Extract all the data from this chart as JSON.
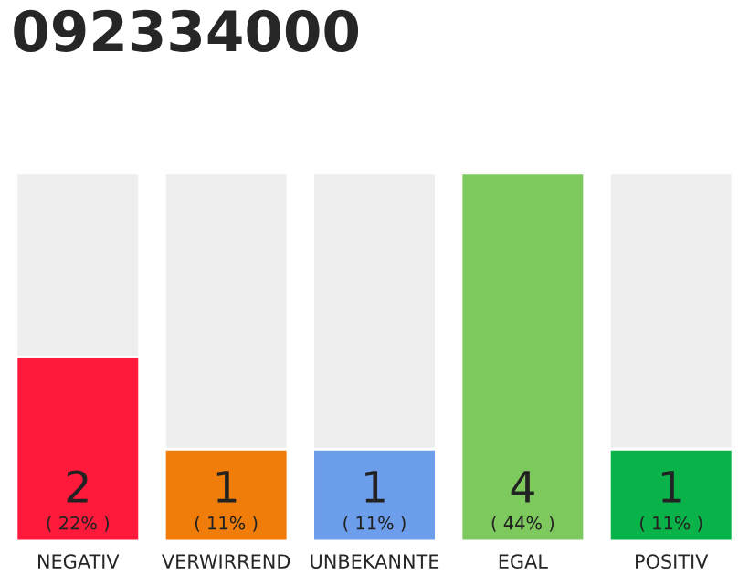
{
  "chart_data": {
    "type": "bar",
    "title": "092334000",
    "stacked": true,
    "categories": [
      "NEGATIV",
      "VERWIRREND",
      "UNBEKANNTE",
      "EGAL",
      "POSITIV"
    ],
    "series": [
      {
        "colors": [
          "#ff1a3c",
          "#f07d0a",
          "#6d9eeb",
          "#7dc95e",
          "#0ab34a"
        ],
        "values": [
          2,
          1,
          1,
          4,
          1
        ],
        "value_labels": [
          "2\n( 22% )",
          "1\n( 11% )",
          "1\n( 11% )",
          "4\n( 44% )",
          "1\n( 11% )"
        ]
      },
      {
        "color": "#eeeeee",
        "values": [
          2,
          3,
          3,
          null,
          3
        ]
      }
    ],
    "grid": false,
    "legend": false
  }
}
